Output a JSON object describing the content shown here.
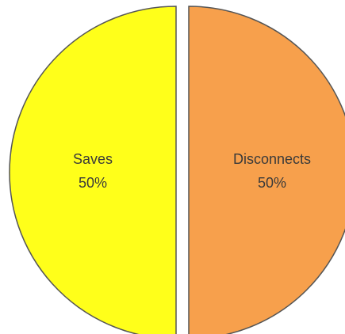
{
  "chart_data": {
    "type": "pie",
    "categories": [
      "Saves",
      "Disconnects"
    ],
    "values": [
      50,
      50
    ],
    "value_labels": [
      "50%",
      "50%"
    ],
    "colors": [
      "#ffff1a",
      "#f7a04c"
    ]
  }
}
